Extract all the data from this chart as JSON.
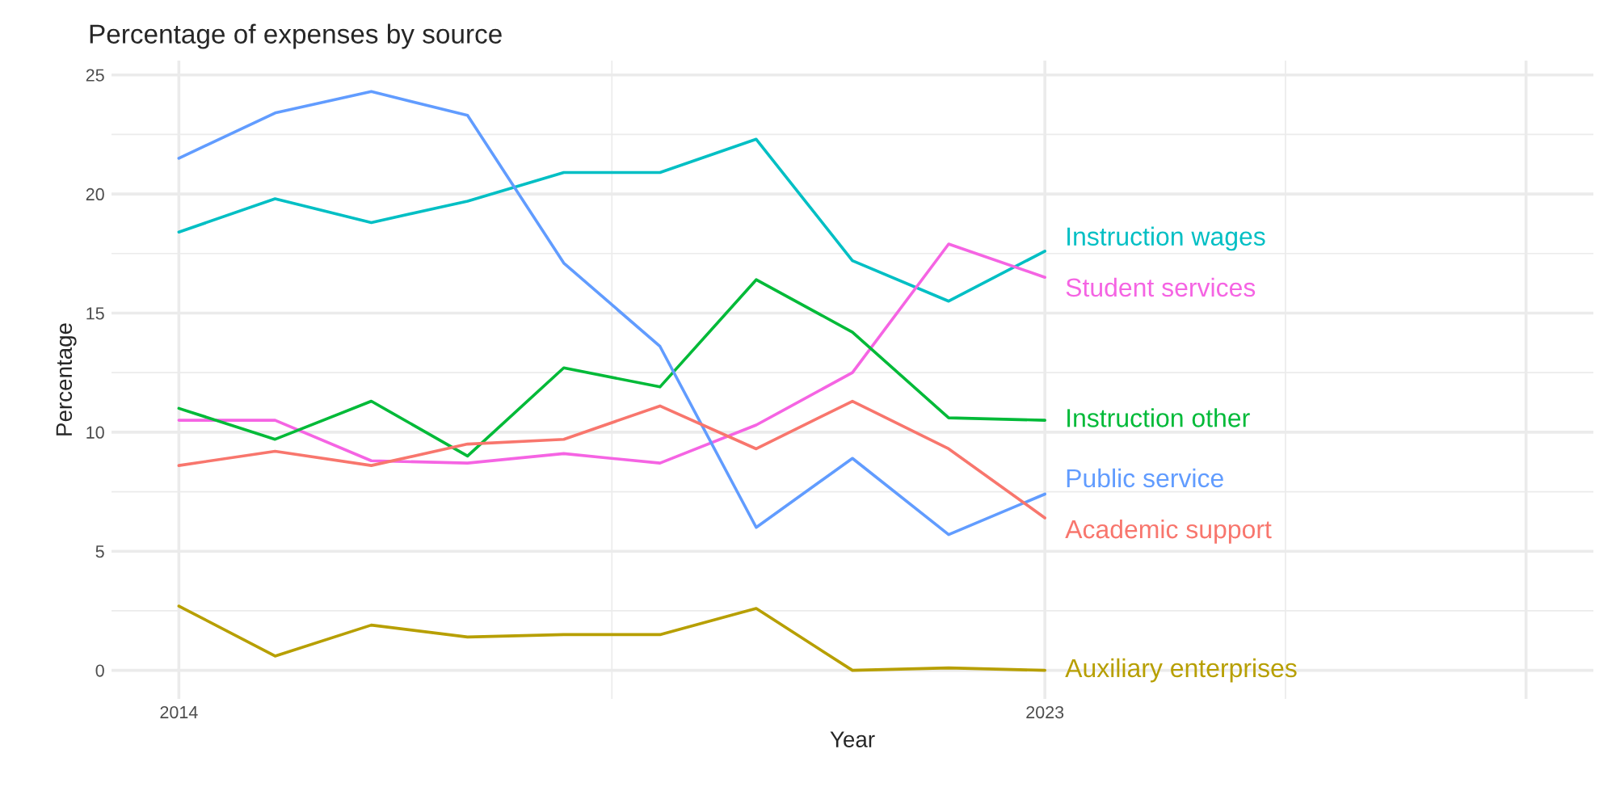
{
  "chart_data": {
    "type": "line",
    "title": "Percentage of expenses by source",
    "xlabel": "Year",
    "ylabel": "Percentage",
    "x": [
      2014,
      2015,
      2016,
      2017,
      2018,
      2019,
      2020,
      2021,
      2022,
      2023
    ],
    "series": [
      {
        "name": "Instruction wages",
        "color": "#00bfc4",
        "values": [
          18.4,
          19.8,
          18.8,
          19.7,
          20.9,
          20.9,
          22.3,
          17.2,
          15.5,
          17.6
        ]
      },
      {
        "name": "Student services",
        "color": "#f564e3",
        "values": [
          10.5,
          10.5,
          8.8,
          8.7,
          9.1,
          8.7,
          10.3,
          12.5,
          17.9,
          16.5
        ]
      },
      {
        "name": "Instruction other",
        "color": "#00ba38",
        "values": [
          11.0,
          9.7,
          11.3,
          9.0,
          12.7,
          11.9,
          16.4,
          14.2,
          10.6,
          10.5
        ]
      },
      {
        "name": "Public service",
        "color": "#619cff",
        "values": [
          21.5,
          23.4,
          24.3,
          23.3,
          17.1,
          13.6,
          6.0,
          8.9,
          5.7,
          7.4
        ]
      },
      {
        "name": "Academic support",
        "color": "#f8766d",
        "values": [
          8.6,
          9.2,
          8.6,
          9.5,
          9.7,
          11.1,
          9.3,
          11.3,
          9.3,
          6.4
        ]
      },
      {
        "name": "Auxiliary enterprises",
        "color": "#b79f00",
        "values": [
          2.7,
          0.6,
          1.9,
          1.4,
          1.5,
          1.5,
          2.6,
          0.0,
          0.1,
          0.0
        ]
      }
    ],
    "xlim": [
      2013.3,
      2028.7
    ],
    "xticks": [
      2014,
      2023,
      {
        "value": 2028,
        "label": null
      }
    ],
    "ylim": [
      -1.2,
      25.6
    ],
    "yticks": [
      0,
      5,
      10,
      15,
      20,
      25
    ],
    "grid": true,
    "legend": false,
    "marker": "none",
    "line_style": "solid"
  }
}
